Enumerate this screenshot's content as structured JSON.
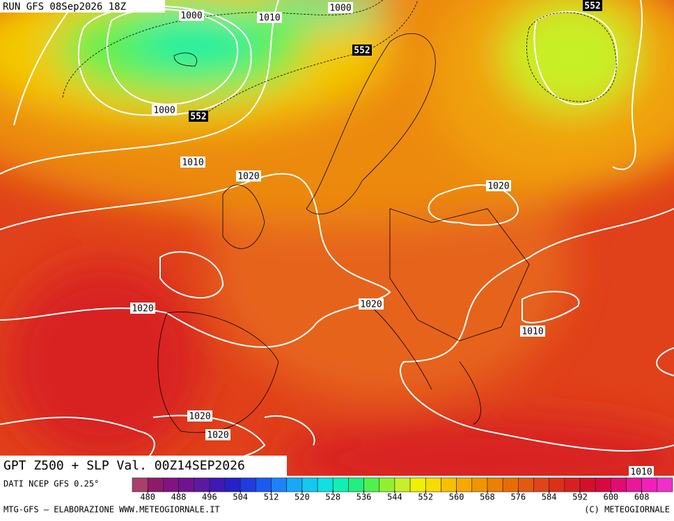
{
  "header": {
    "run": "RUN GFS 08Sep2026 18Z"
  },
  "contour_labels": [
    1000,
    1010,
    1000,
    552,
    552,
    1000,
    552,
    1010,
    1020,
    1020,
    1020,
    1020,
    1010,
    1020,
    1020,
    1010
  ],
  "title": "GPT Z500 + SLP Val. 00Z14SEP2026",
  "source": "DATI NCEP GFS 0.25°",
  "colorbar": {
    "colors": [
      "#a8406c",
      "#901a6a",
      "#801480",
      "#6e1490",
      "#5c18a0",
      "#4018b4",
      "#2422c8",
      "#1e3ce0",
      "#1a5af0",
      "#1e82f8",
      "#18a8f8",
      "#14c8f0",
      "#10e0e0",
      "#10f0b4",
      "#20f080",
      "#50f050",
      "#90f030",
      "#c8f028",
      "#f0f000",
      "#f8dc00",
      "#f8c000",
      "#f8a800",
      "#f09400",
      "#ec8000",
      "#e86c00",
      "#e45810",
      "#e04418",
      "#dc3018",
      "#d82020",
      "#d41028",
      "#d80840",
      "#e00c70",
      "#e81898",
      "#f020b8",
      "#f030c8"
    ],
    "ticks": [
      480,
      488,
      496,
      504,
      512,
      520,
      528,
      536,
      544,
      552,
      560,
      568,
      576,
      584,
      592,
      600,
      608
    ]
  },
  "footer": {
    "left": "MTG-GFS – ELABORAZIONE WWW.METEOGIORNALE.IT",
    "right": "(C) METEOGIORNALE"
  }
}
